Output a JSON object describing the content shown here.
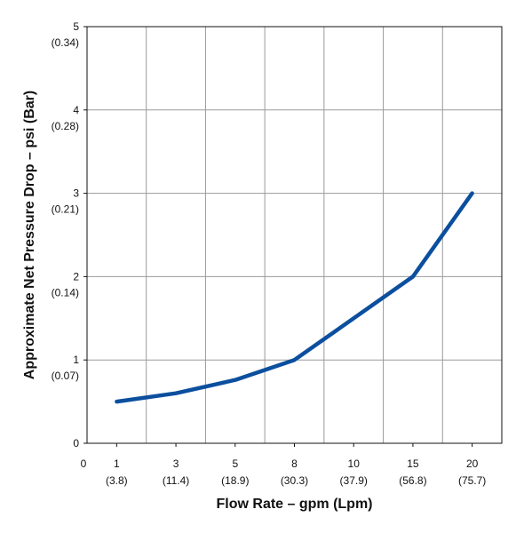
{
  "chart_data": {
    "type": "line",
    "title": "",
    "xlabel": "Flow Rate – gpm (Lpm)",
    "ylabel": "Approximate Net Pressure Drop – psi (Bar)",
    "x_origin_label": "0",
    "categories": [
      {
        "value": "1",
        "sub": "(3.8)"
      },
      {
        "value": "3",
        "sub": "(11.4)"
      },
      {
        "value": "5",
        "sub": "(18.9)"
      },
      {
        "value": "8",
        "sub": "(30.3)"
      },
      {
        "value": "10",
        "sub": "(37.9)"
      },
      {
        "value": "15",
        "sub": "(56.8)"
      },
      {
        "value": "20",
        "sub": "(75.7)"
      }
    ],
    "yticks": [
      {
        "value": 0,
        "label": "0",
        "sub": ""
      },
      {
        "value": 1,
        "label": "1",
        "sub": "(0.07)"
      },
      {
        "value": 2,
        "label": "2",
        "sub": "(0.14)"
      },
      {
        "value": 3,
        "label": "3",
        "sub": "(0.21)"
      },
      {
        "value": 4,
        "label": "4",
        "sub": "(0.28)"
      },
      {
        "value": 5,
        "label": "5",
        "sub": "(0.34)"
      }
    ],
    "ylim": [
      0,
      5
    ],
    "grid": true,
    "series": [
      {
        "values": [
          0.5,
          0.6,
          0.76,
          1.0,
          1.5,
          2.0,
          3.0
        ],
        "color": "#0b4f9e"
      }
    ]
  }
}
